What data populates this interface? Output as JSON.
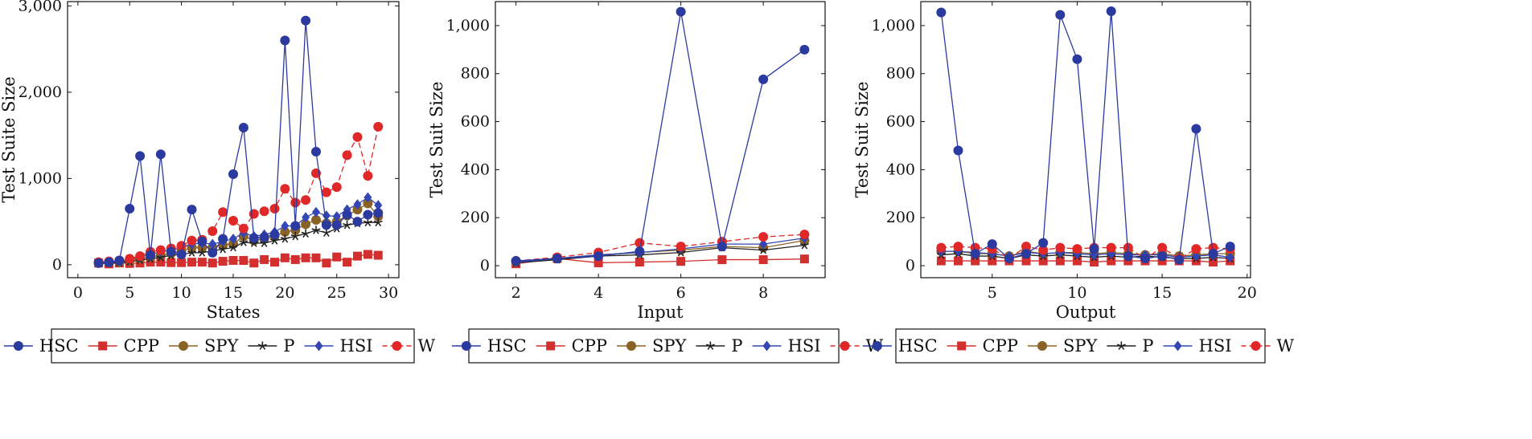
{
  "colors": {
    "HSC": "#2b3a9f",
    "CPP": "#d42f2f",
    "SPY": "#8a6226",
    "P": "#222222",
    "HSI": "#3346b4",
    "W": "#e02828",
    "axis": "#111111"
  },
  "legend": [
    {
      "key": "HSC",
      "label": "HSC",
      "marker": "circle",
      "dash": false
    },
    {
      "key": "CPP",
      "label": "CPP",
      "marker": "square",
      "dash": false
    },
    {
      "key": "SPY",
      "label": "SPY",
      "marker": "circle",
      "dash": false
    },
    {
      "key": "P",
      "label": "P",
      "marker": "star",
      "dash": false
    },
    {
      "key": "HSI",
      "label": "HSI",
      "marker": "diamond",
      "dash": false
    },
    {
      "key": "W",
      "label": "W",
      "marker": "circle",
      "dash": true
    }
  ],
  "chart_data": [
    {
      "type": "line",
      "xlabel": "States",
      "ylabel": "Test Suite Size",
      "xlim": [
        -1,
        31
      ],
      "ylim": [
        -150,
        3050
      ],
      "xticks": [
        0,
        5,
        10,
        15,
        20,
        25,
        30
      ],
      "xtick_labels": [
        "0",
        "5",
        "10",
        "15",
        "20",
        "25",
        "30"
      ],
      "yticks": [
        0,
        1000,
        2000,
        3000
      ],
      "ytick_labels": [
        "0",
        "1,000",
        "2,000",
        "3,000"
      ],
      "x": [
        2,
        3,
        4,
        5,
        6,
        7,
        8,
        9,
        10,
        11,
        12,
        13,
        14,
        15,
        16,
        17,
        18,
        19,
        20,
        21,
        22,
        23,
        24,
        25,
        26,
        27,
        28,
        29
      ],
      "series": [
        {
          "name": "HSC",
          "values": [
            20,
            30,
            50,
            650,
            1260,
            110,
            1280,
            150,
            120,
            640,
            270,
            140,
            300,
            1050,
            1590,
            310,
            320,
            350,
            2600,
            450,
            2830,
            1310,
            460,
            460,
            580,
            500,
            580,
            600
          ]
        },
        {
          "name": "CPP",
          "values": [
            20,
            10,
            20,
            15,
            20,
            30,
            30,
            25,
            25,
            30,
            30,
            20,
            40,
            50,
            50,
            20,
            60,
            30,
            80,
            60,
            80,
            80,
            20,
            90,
            30,
            100,
            120,
            110
          ]
        },
        {
          "name": "SPY",
          "values": [
            20,
            25,
            30,
            50,
            70,
            90,
            110,
            130,
            160,
            200,
            200,
            200,
            230,
            240,
            330,
            280,
            300,
            330,
            380,
            400,
            470,
            520,
            480,
            500,
            570,
            640,
            710,
            560
          ]
        },
        {
          "name": "P",
          "values": [
            15,
            20,
            25,
            35,
            55,
            70,
            85,
            110,
            120,
            140,
            140,
            160,
            180,
            200,
            260,
            250,
            250,
            280,
            300,
            330,
            360,
            400,
            370,
            420,
            460,
            480,
            490,
            490
          ]
        },
        {
          "name": "HSI",
          "values": [
            20,
            25,
            40,
            60,
            90,
            120,
            150,
            170,
            200,
            240,
            250,
            240,
            270,
            300,
            370,
            330,
            350,
            380,
            450,
            450,
            550,
            610,
            570,
            560,
            640,
            700,
            780,
            690
          ]
        },
        {
          "name": "W",
          "values": [
            30,
            40,
            50,
            70,
            100,
            150,
            170,
            190,
            220,
            280,
            290,
            390,
            610,
            510,
            420,
            590,
            620,
            650,
            880,
            720,
            750,
            1060,
            840,
            900,
            1270,
            1480,
            1030,
            1600
          ]
        }
      ]
    },
    {
      "type": "line",
      "xlabel": "Input",
      "ylabel": "Test Suit Size",
      "xlim": [
        1.5,
        9.5
      ],
      "ylim": [
        -50,
        1100
      ],
      "xticks": [
        2,
        4,
        6,
        8
      ],
      "xtick_labels": [
        "2",
        "4",
        "6",
        "8"
      ],
      "yticks": [
        0,
        200,
        400,
        600,
        800,
        1000
      ],
      "ytick_labels": [
        "0",
        "200",
        "400",
        "600",
        "800",
        "1,000"
      ],
      "x": [
        2,
        3,
        4,
        5,
        6,
        7,
        8,
        9
      ],
      "series": [
        {
          "name": "HSC",
          "values": [
            20,
            30,
            40,
            60,
            1058,
            80,
            776,
            900
          ]
        },
        {
          "name": "CPP",
          "values": [
            8,
            30,
            12,
            15,
            18,
            25,
            25,
            28
          ]
        },
        {
          "name": "SPY",
          "values": [
            15,
            30,
            45,
            55,
            65,
            80,
            75,
            105
          ]
        },
        {
          "name": "P",
          "values": [
            12,
            25,
            40,
            45,
            55,
            75,
            65,
            85
          ]
        },
        {
          "name": "HSI",
          "values": [
            15,
            30,
            45,
            55,
            70,
            90,
            90,
            115
          ]
        },
        {
          "name": "W",
          "values": [
            20,
            35,
            55,
            95,
            80,
            100,
            120,
            130
          ]
        }
      ]
    },
    {
      "type": "line",
      "xlabel": "Output",
      "ylabel": "Test Suit Size",
      "xlim": [
        0.8,
        20.2
      ],
      "ylim": [
        -50,
        1100
      ],
      "xticks": [
        5,
        10,
        15,
        20
      ],
      "xtick_labels": [
        "5",
        "10",
        "15",
        "20"
      ],
      "yticks": [
        0,
        200,
        400,
        600,
        800,
        1000
      ],
      "ytick_labels": [
        "0",
        "200",
        "400",
        "600",
        "800",
        "1,000"
      ],
      "x": [
        2,
        3,
        4,
        5,
        6,
        7,
        8,
        9,
        10,
        11,
        12,
        13,
        14,
        15,
        16,
        17,
        18,
        19
      ],
      "series": [
        {
          "name": "HSC",
          "values": [
            1055,
            480,
            50,
            90,
            30,
            50,
            95,
            1045,
            860,
            70,
            1060,
            40,
            30,
            40,
            25,
            570,
            50,
            80
          ]
        },
        {
          "name": "CPP",
          "values": [
            20,
            20,
            20,
            20,
            20,
            20,
            20,
            20,
            20,
            15,
            20,
            20,
            20,
            20,
            20,
            20,
            15,
            20
          ]
        },
        {
          "name": "SPY",
          "values": [
            60,
            60,
            50,
            50,
            40,
            60,
            50,
            55,
            55,
            50,
            55,
            50,
            45,
            50,
            40,
            45,
            50,
            50
          ]
        },
        {
          "name": "P",
          "values": [
            45,
            50,
            40,
            40,
            30,
            45,
            40,
            45,
            40,
            35,
            40,
            35,
            40,
            35,
            30,
            30,
            35,
            30
          ]
        },
        {
          "name": "HSI",
          "values": [
            60,
            60,
            55,
            50,
            40,
            55,
            50,
            55,
            50,
            45,
            50,
            45,
            45,
            45,
            35,
            40,
            45,
            35
          ]
        },
        {
          "name": "W",
          "values": [
            75,
            80,
            75,
            70,
            30,
            80,
            65,
            75,
            70,
            75,
            75,
            75,
            30,
            75,
            30,
            70,
            75,
            70
          ]
        }
      ]
    }
  ]
}
